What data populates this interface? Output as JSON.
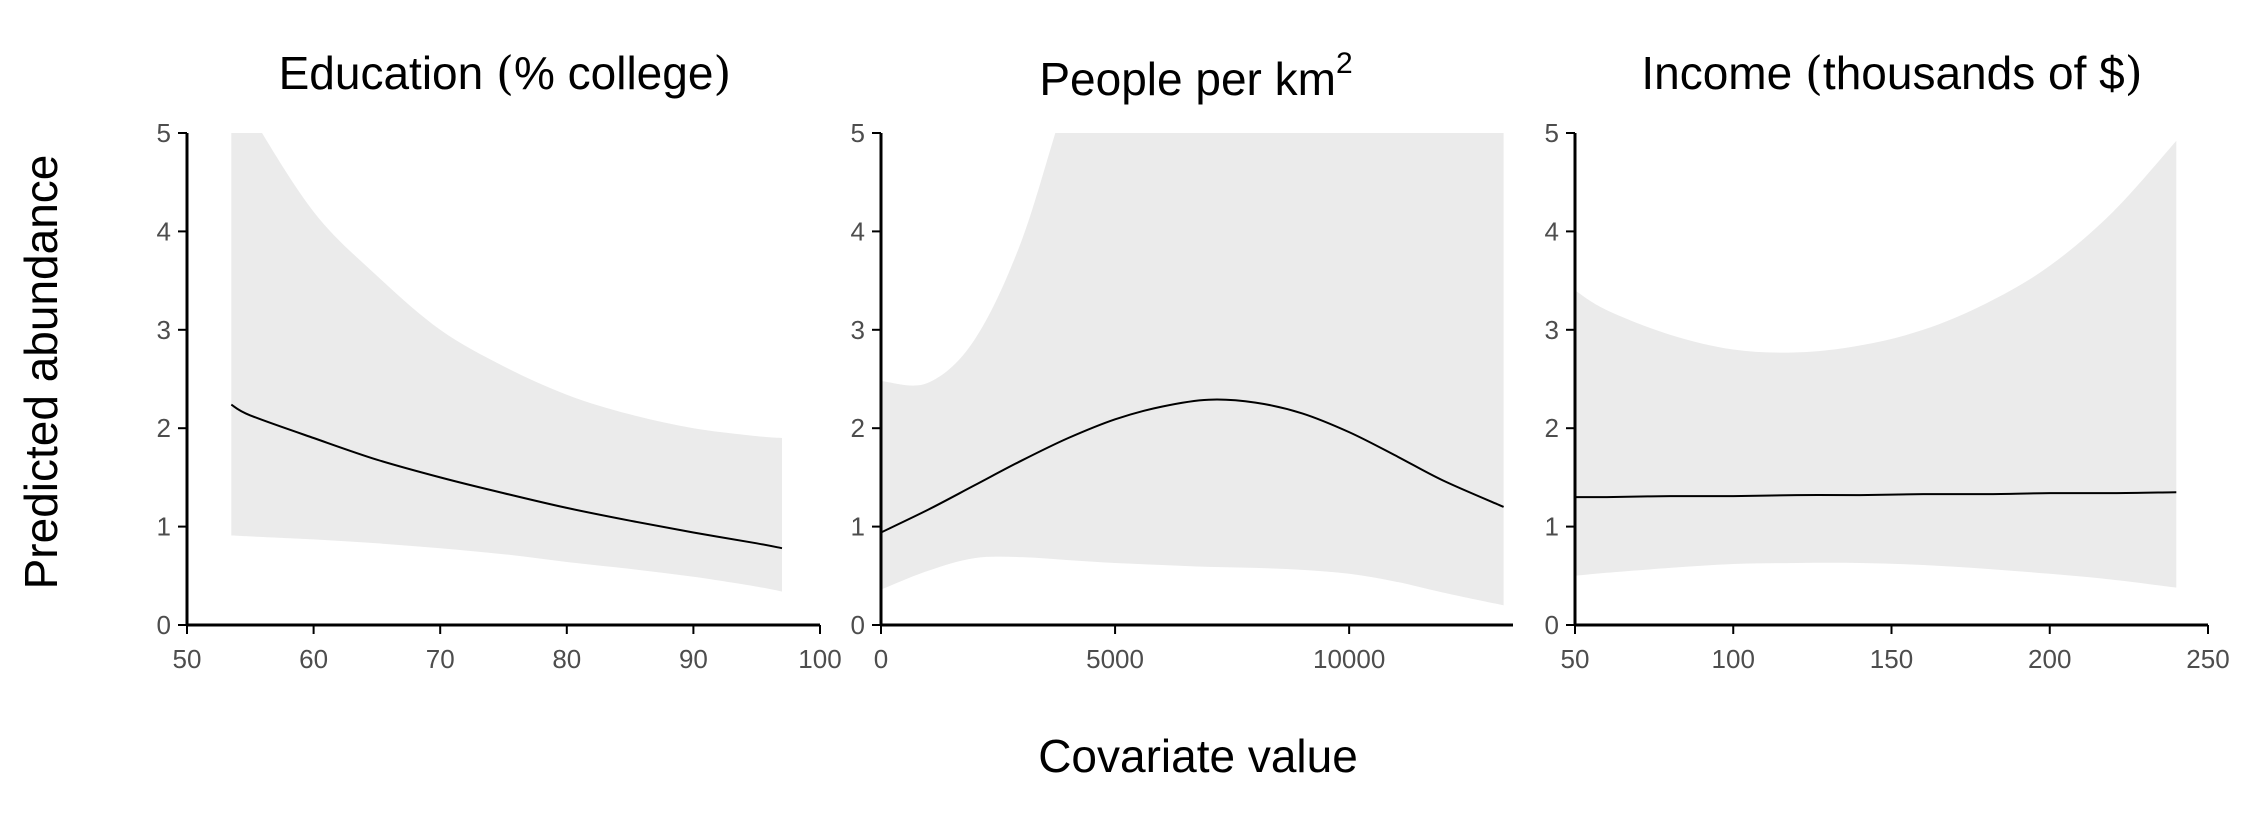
{
  "y_axis_title": "Predicted abundance",
  "x_axis_title": "Covariate value",
  "colors": {
    "ribbon": "#ebebeb",
    "line": "#000000",
    "axis": "#000000",
    "tick_text": "#4d4d4d"
  },
  "chart_data": [
    {
      "type": "line",
      "title": "Education (% college)",
      "title_parts": {
        "main": "Education ",
        "lparen": "(",
        "inner": "% college",
        "rparen": ")"
      },
      "xlim": [
        50,
        100
      ],
      "ylim": [
        0,
        5
      ],
      "xticks": [
        50,
        60,
        70,
        80,
        90,
        100
      ],
      "yticks": [
        0,
        1,
        2,
        3,
        4,
        5
      ],
      "grid": false,
      "x": [
        53.5,
        55,
        60,
        65,
        70,
        75,
        80,
        85,
        90,
        95,
        97
      ],
      "y": [
        2.24,
        2.13,
        1.9,
        1.68,
        1.5,
        1.34,
        1.19,
        1.06,
        0.94,
        0.83,
        0.78
      ],
      "lower": [
        0.91,
        0.9,
        0.87,
        0.83,
        0.78,
        0.72,
        0.64,
        0.57,
        0.49,
        0.39,
        0.34
      ],
      "upper": [
        5.6,
        5.2,
        4.2,
        3.55,
        3.0,
        2.63,
        2.34,
        2.14,
        2.0,
        1.92,
        1.9
      ]
    },
    {
      "type": "line",
      "title": "People per km2",
      "title_parts": {
        "main": "People per km",
        "sup": "2"
      },
      "xlim": [
        0,
        13500
      ],
      "ylim": [
        0,
        5
      ],
      "xticks": [
        0,
        5000,
        10000
      ],
      "yticks": [
        0,
        1,
        2,
        3,
        4,
        5
      ],
      "grid": false,
      "x": [
        0,
        1000,
        2000,
        3000,
        4000,
        5000,
        6000,
        7000,
        8000,
        9000,
        10000,
        11000,
        12000,
        13300
      ],
      "y": [
        0.94,
        1.17,
        1.42,
        1.67,
        1.9,
        2.09,
        2.22,
        2.29,
        2.26,
        2.15,
        1.96,
        1.72,
        1.47,
        1.2
      ],
      "lower": [
        0.36,
        0.55,
        0.68,
        0.69,
        0.66,
        0.63,
        0.61,
        0.59,
        0.58,
        0.56,
        0.52,
        0.44,
        0.33,
        0.2
      ],
      "upper": [
        2.48,
        2.46,
        2.9,
        3.9,
        5.4,
        6.5,
        6.5,
        6.5,
        6.5,
        6.5,
        6.5,
        6.5,
        6.5,
        6.5
      ]
    },
    {
      "type": "line",
      "title": "Income (thousands of $)",
      "title_parts": {
        "main": "Income ",
        "lparen": "(",
        "inner": "thousands of $",
        "rparen": ")"
      },
      "xlim": [
        50,
        250
      ],
      "ylim": [
        0,
        5
      ],
      "xticks": [
        50,
        100,
        150,
        200,
        250
      ],
      "yticks": [
        0,
        1,
        2,
        3,
        4,
        5
      ],
      "grid": false,
      "x": [
        50,
        60,
        80,
        100,
        120,
        140,
        160,
        180,
        200,
        220,
        240
      ],
      "y": [
        1.3,
        1.3,
        1.31,
        1.31,
        1.32,
        1.32,
        1.33,
        1.33,
        1.34,
        1.34,
        1.35
      ],
      "lower": [
        0.5,
        0.53,
        0.58,
        0.62,
        0.63,
        0.63,
        0.61,
        0.57,
        0.52,
        0.46,
        0.38
      ],
      "upper": [
        3.4,
        3.2,
        2.95,
        2.8,
        2.77,
        2.84,
        3.0,
        3.27,
        3.65,
        4.2,
        4.92
      ]
    }
  ]
}
